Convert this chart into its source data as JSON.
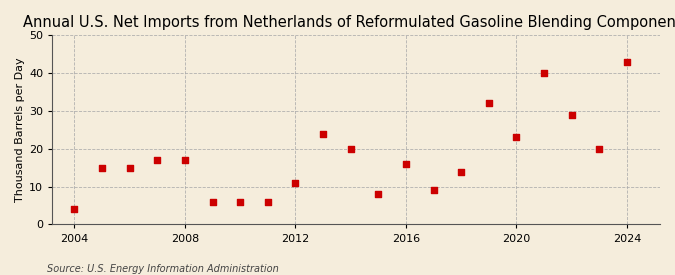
{
  "title": "Annual U.S. Net Imports from Netherlands of Reformulated Gasoline Blending Components",
  "ylabel": "Thousand Barrels per Day",
  "source": "Source: U.S. Energy Information Administration",
  "years": [
    2004,
    2005,
    2006,
    2007,
    2008,
    2009,
    2010,
    2011,
    2012,
    2013,
    2014,
    2015,
    2016,
    2017,
    2018,
    2019,
    2020,
    2021,
    2022,
    2023,
    2024
  ],
  "values": [
    4,
    15,
    15,
    17,
    17,
    6,
    6,
    6,
    11,
    24,
    20,
    8,
    16,
    9,
    14,
    32,
    23,
    40,
    29,
    20,
    43
  ],
  "marker_color": "#cc0000",
  "marker": "s",
  "marker_size": 18,
  "xlim": [
    2003.2,
    2025.2
  ],
  "ylim": [
    0,
    50
  ],
  "yticks": [
    0,
    10,
    20,
    30,
    40,
    50
  ],
  "xticks": [
    2004,
    2008,
    2012,
    2016,
    2020,
    2024
  ],
  "bg_color": "#f5eddc",
  "grid_color": "#aaaaaa",
  "title_fontsize": 10.5,
  "label_fontsize": 8,
  "tick_fontsize": 8,
  "source_fontsize": 7
}
